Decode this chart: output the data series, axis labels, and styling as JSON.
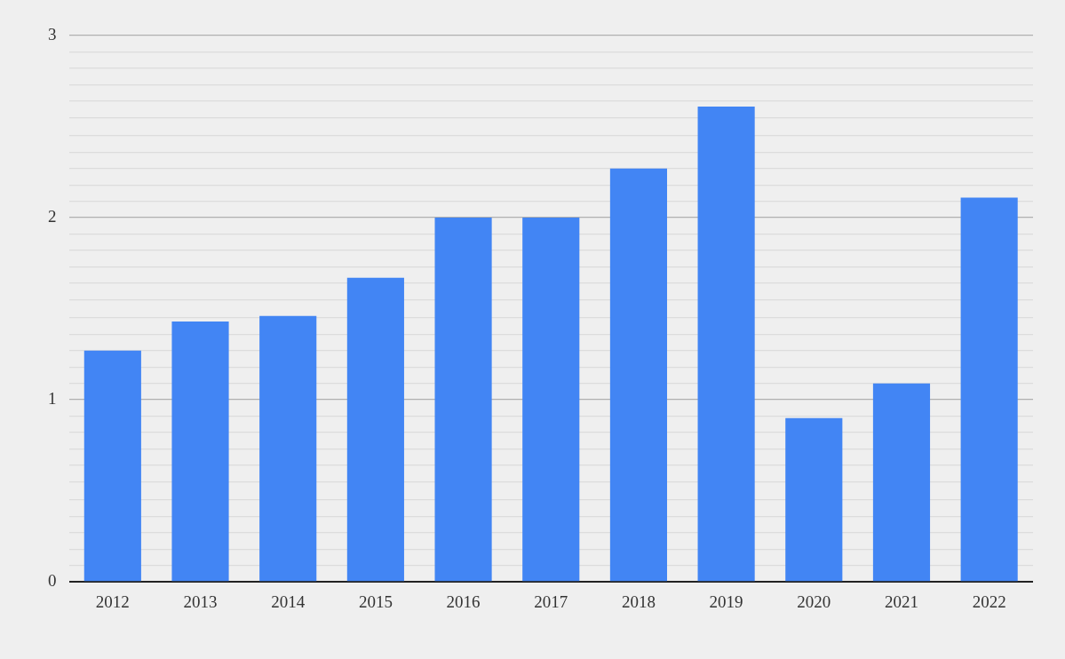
{
  "chart_data": {
    "type": "bar",
    "categories": [
      "2012",
      "2013",
      "2014",
      "2015",
      "2016",
      "2017",
      "2018",
      "2019",
      "2020",
      "2021",
      "2022"
    ],
    "values": [
      1.27,
      1.43,
      1.46,
      1.67,
      2.0,
      2.0,
      2.27,
      2.61,
      0.9,
      1.09,
      2.11
    ],
    "color": "#4285f4",
    "ylim": [
      0,
      3
    ],
    "yticks": [
      0,
      {
        "value": 0.09,
        "label": null
      },
      {
        "value": 0.18,
        "label": null
      },
      {
        "value": 0.27,
        "label": null
      },
      {
        "value": 0.36,
        "label": null
      },
      {
        "value": 0.45,
        "label": null
      },
      {
        "value": 0.55,
        "label": null
      },
      {
        "value": 0.64,
        "label": null
      },
      {
        "value": 0.73,
        "label": null
      },
      {
        "value": 0.82,
        "label": null
      },
      {
        "value": 0.91,
        "label": null
      },
      1,
      {
        "value": 1.09,
        "label": null
      },
      {
        "value": 1.18,
        "label": null
      },
      {
        "value": 1.27,
        "label": null
      },
      {
        "value": 1.36,
        "label": null
      },
      {
        "value": 1.45,
        "label": null
      },
      {
        "value": 1.55,
        "label": null
      },
      {
        "value": 1.64,
        "label": null
      },
      {
        "value": 1.73,
        "label": null
      },
      {
        "value": 1.82,
        "label": null
      },
      {
        "value": 1.91,
        "label": null
      },
      2,
      {
        "value": 2.09,
        "label": null
      },
      {
        "value": 2.18,
        "label": null
      },
      {
        "value": 2.27,
        "label": null
      },
      {
        "value": 2.36,
        "label": null
      },
      {
        "value": 2.45,
        "label": null
      },
      {
        "value": 2.55,
        "label": null
      },
      {
        "value": 2.64,
        "label": null
      },
      {
        "value": 2.73,
        "label": null
      },
      {
        "value": 2.82,
        "label": null
      },
      {
        "value": 2.91,
        "label": null
      },
      3
    ],
    "grid": "y",
    "legend": false
  }
}
